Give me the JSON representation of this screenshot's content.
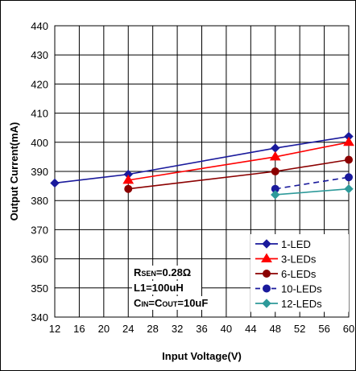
{
  "chart_data": {
    "type": "line",
    "title": "",
    "xlabel": "Input Voltage(V)",
    "ylabel": "Output Current(mA)",
    "xlim": [
      12,
      60
    ],
    "ylim": [
      340,
      440
    ],
    "xticks": [
      12,
      16,
      20,
      24,
      28,
      32,
      36,
      40,
      44,
      48,
      52,
      56,
      60
    ],
    "yticks": [
      340,
      350,
      360,
      370,
      380,
      390,
      400,
      410,
      420,
      430,
      440
    ],
    "grid": true,
    "legend_position": "bottom-right",
    "series": [
      {
        "name": "1-LED",
        "x": [
          12,
          24,
          48,
          60
        ],
        "y": [
          386,
          389,
          398,
          402
        ],
        "color": "#1a1a9c",
        "marker": "diamond",
        "dash": "solid"
      },
      {
        "name": "3-LEDs",
        "x": [
          24,
          48,
          60
        ],
        "y": [
          387,
          395,
          400
        ],
        "color": "#ff0000",
        "marker": "triangle",
        "dash": "solid"
      },
      {
        "name": "6-LEDs",
        "x": [
          24,
          48,
          60
        ],
        "y": [
          384,
          390,
          394
        ],
        "color": "#8b0000",
        "marker": "circle",
        "dash": "solid"
      },
      {
        "name": "10-LEDs",
        "x": [
          48,
          60
        ],
        "y": [
          384,
          388
        ],
        "color": "#1a1a9c",
        "marker": "circle",
        "dash": "dashed"
      },
      {
        "name": "12-LEDs",
        "x": [
          48,
          60
        ],
        "y": [
          382,
          384
        ],
        "color": "#2e9a9a",
        "marker": "diamond",
        "dash": "solid"
      }
    ],
    "annotations": [
      {
        "main": "R",
        "sub": "SEN",
        "rest": "=0.28Ω"
      },
      {
        "main": "L1=100uH",
        "sub": "",
        "rest": ""
      },
      {
        "main": "C",
        "sub": "IN",
        "rest": "=C",
        "sub2": "OUT",
        "rest2": "=10uF"
      }
    ]
  }
}
